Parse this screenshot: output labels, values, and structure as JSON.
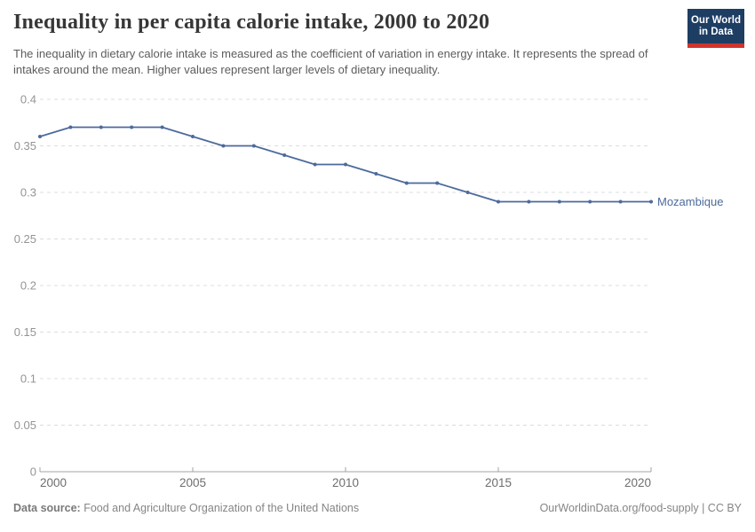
{
  "header": {
    "title": "Inequality in per capita calorie intake, 2000 to 2020",
    "subtitle": "The inequality in dietary calorie intake is measured as the coefficient of variation in energy intake. It represents the spread of intakes around the mean. Higher values represent larger levels of dietary inequality."
  },
  "logo": {
    "line1": "Our World",
    "line2": "in Data",
    "bg_color": "#1d3d63",
    "accent_color": "#d0342c",
    "text_color": "#ffffff"
  },
  "chart_data": {
    "type": "line",
    "title": "Inequality in per capita calorie intake, 2000 to 2020",
    "xlabel": "",
    "ylabel": "",
    "x": [
      2000,
      2001,
      2002,
      2003,
      2004,
      2005,
      2006,
      2007,
      2008,
      2009,
      2010,
      2011,
      2012,
      2013,
      2014,
      2015,
      2016,
      2017,
      2018,
      2019,
      2020
    ],
    "series": [
      {
        "name": "Mozambique",
        "color": "#4C6A9C",
        "values": [
          0.36,
          0.37,
          0.37,
          0.37,
          0.37,
          0.36,
          0.35,
          0.35,
          0.34,
          0.33,
          0.33,
          0.32,
          0.31,
          0.31,
          0.3,
          0.29,
          0.29,
          0.29,
          0.29,
          0.29,
          0.29
        ]
      }
    ],
    "ylim": [
      0,
      0.4
    ],
    "yticks": [
      0,
      0.05,
      0.1,
      0.15,
      0.2,
      0.25,
      0.3,
      0.35,
      0.4
    ],
    "ytick_labels": [
      "0",
      "0.05",
      "0.1",
      "0.15",
      "0.2",
      "0.25",
      "0.3",
      "0.35",
      "0.4"
    ],
    "xticks": [
      2000,
      2005,
      2010,
      2015,
      2020
    ],
    "grid": "horizontal-dashed",
    "grid_color": "#dcdcdc",
    "axis_color": "#a3a3a3",
    "ytick_label_color": "#949494",
    "xtick_label_color": "#6e6e6e",
    "legend_position": "line-end-label"
  },
  "footer": {
    "datasource_label": "Data source:",
    "datasource_text": " Food and Agriculture Organization of the United Nations",
    "right_text": "OurWorldinData.org/food-supply | CC BY"
  }
}
